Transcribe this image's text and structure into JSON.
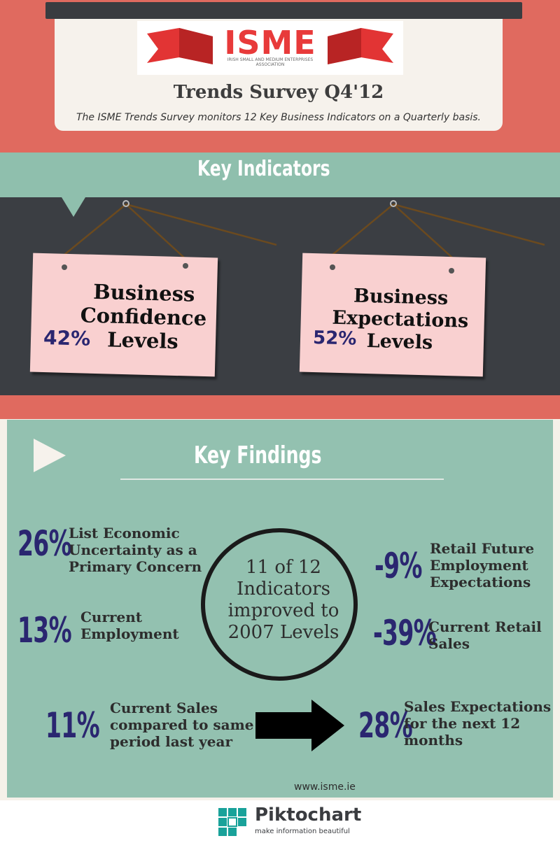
{
  "header": {
    "logo_text": "ISME",
    "logo_subtitle": "IRISH SMALL AND MEDIUM ENTERPRISES ASSOCIATION",
    "title": "Trends Survey Q4'12",
    "subtitle": "The ISME Trends Survey monitors 12 Key Business Indicators on a Quarterly basis."
  },
  "key_indicators": {
    "heading": "Key Indicators",
    "signs": [
      {
        "line1": "Business",
        "line2": "Confidence",
        "line3": "Levels",
        "value": "42%"
      },
      {
        "line1": "Business",
        "line2": "Expectations",
        "line3": "Levels",
        "value": "52%"
      }
    ]
  },
  "key_findings": {
    "heading": "Key Findings",
    "center": {
      "line1": "11 of 12",
      "line2": "Indicators",
      "line3": "improved to",
      "line4": "2007 Levels"
    },
    "items": [
      {
        "value": "26%",
        "line1": "List Economic",
        "line2": "Uncertainty as a",
        "line3": "Primary Concern"
      },
      {
        "value": "13%",
        "line1": "Current",
        "line2": "Employment"
      },
      {
        "value": "11%",
        "line1": "Current Sales",
        "line2": "compared to same",
        "line3": "period last year"
      },
      {
        "value": "-9%",
        "line1": "Retail Future",
        "line2": "Employment",
        "line3": "Expectations"
      },
      {
        "value": "-39%",
        "line1": "Current Retail",
        "line2": "Sales"
      },
      {
        "value": "28%",
        "line1": "Sales Expectations",
        "line2": "for the next 12",
        "line3": "months"
      }
    ],
    "website": "www.isme.ie"
  },
  "footer": {
    "brand": "Piktochart",
    "tagline": "make information beautiful"
  },
  "colors": {
    "salmon": "#e06a5f",
    "teal": "#8fbfad",
    "dark": "#3b3e43",
    "sign_pink": "#f9d0d0",
    "percent_navy": "#2a2670"
  }
}
